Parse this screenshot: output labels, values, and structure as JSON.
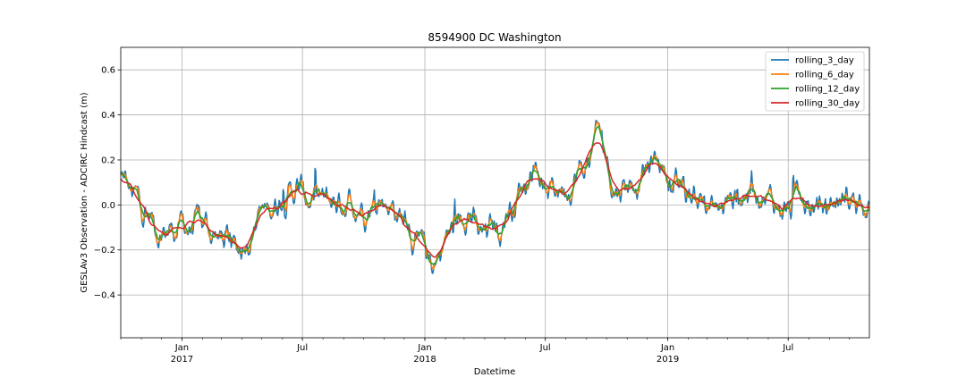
{
  "chart_data": {
    "type": "line",
    "title": "8594900 DC Washington",
    "xlabel": "Datetime",
    "ylabel": "GESLAv3 Observation - ADCIRC Hindcast (m)",
    "xlim": [
      "2016-10-01",
      "2019-10-31"
    ],
    "ylim": [
      -0.59,
      0.7
    ],
    "grid": true,
    "legend_position": "top-right",
    "y_ticks": [
      -0.4,
      -0.2,
      0.0,
      0.2,
      0.4,
      0.6
    ],
    "y_tick_labels": [
      "−0.4",
      "−0.2",
      "0.0",
      "0.2",
      "0.4",
      "0.6"
    ],
    "x_major_ticks": [
      {
        "date": "2017-01-01",
        "month": "Jan",
        "year": "2017"
      },
      {
        "date": "2017-07-01",
        "month": "Jul",
        "year": ""
      },
      {
        "date": "2018-01-01",
        "month": "Jan",
        "year": "2018"
      },
      {
        "date": "2018-07-01",
        "month": "Jul",
        "year": ""
      },
      {
        "date": "2019-01-01",
        "month": "Jan",
        "year": "2019"
      },
      {
        "date": "2019-07-01",
        "month": "Jul",
        "year": ""
      }
    ],
    "x_minor_ticks_monthly": true,
    "series_keypoints": [
      [
        "2016-10-01",
        0.12
      ],
      [
        "2016-10-20",
        0.03
      ],
      [
        "2016-11-10",
        -0.04
      ],
      [
        "2016-12-01",
        -0.12
      ],
      [
        "2016-12-20",
        -0.1
      ],
      [
        "2017-01-10",
        -0.1
      ],
      [
        "2017-02-01",
        -0.09
      ],
      [
        "2017-03-01",
        -0.15
      ],
      [
        "2017-03-25",
        -0.2
      ],
      [
        "2017-04-10",
        -0.12
      ],
      [
        "2017-05-01",
        -0.04
      ],
      [
        "2017-06-01",
        0.04
      ],
      [
        "2017-06-20",
        0.07
      ],
      [
        "2017-07-15",
        0.02
      ],
      [
        "2017-08-01",
        0.0
      ],
      [
        "2017-09-01",
        0.02
      ],
      [
        "2017-10-01",
        0.01
      ],
      [
        "2017-11-01",
        0.02
      ],
      [
        "2017-12-01",
        -0.06
      ],
      [
        "2017-12-25",
        -0.2
      ],
      [
        "2018-01-10",
        -0.25
      ],
      [
        "2018-02-10",
        -0.12
      ],
      [
        "2018-03-05",
        0.0
      ],
      [
        "2018-03-25",
        -0.15
      ],
      [
        "2018-04-20",
        -0.1
      ],
      [
        "2018-05-10",
        0.0
      ],
      [
        "2018-06-01",
        0.1
      ],
      [
        "2018-06-15",
        0.2
      ],
      [
        "2018-07-01",
        0.05
      ],
      [
        "2018-08-01",
        0.1
      ],
      [
        "2018-08-25",
        0.15
      ],
      [
        "2018-09-20",
        0.3
      ],
      [
        "2018-10-15",
        0.08
      ],
      [
        "2018-11-15",
        0.12
      ],
      [
        "2018-12-20",
        0.2
      ],
      [
        "2019-01-15",
        0.05
      ],
      [
        "2019-02-15",
        0.04
      ],
      [
        "2019-03-15",
        -0.03
      ],
      [
        "2019-04-15",
        0.05
      ],
      [
        "2019-05-15",
        0.08
      ],
      [
        "2019-06-15",
        0.0
      ],
      [
        "2019-07-15",
        -0.02
      ],
      [
        "2019-08-15",
        -0.02
      ],
      [
        "2019-09-15",
        0.02
      ],
      [
        "2019-10-31",
        0.05
      ]
    ],
    "series": [
      {
        "name": "rolling_3_day",
        "color": "#1f77b4",
        "window_days": 3
      },
      {
        "name": "rolling_6_day",
        "color": "#ff7f0e",
        "window_days": 6
      },
      {
        "name": "rolling_12_day",
        "color": "#2ca02c",
        "window_days": 12
      },
      {
        "name": "rolling_30_day",
        "color": "#d62728",
        "window_days": 30
      }
    ]
  }
}
